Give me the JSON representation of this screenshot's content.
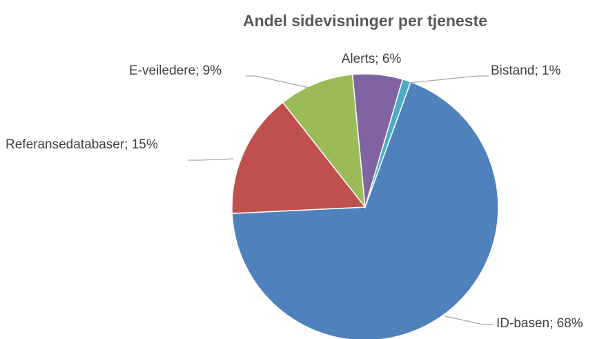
{
  "chart_data": {
    "type": "pie",
    "title": "Andel sidevisninger per tjeneste",
    "values": [
      68,
      15,
      9,
      6,
      1
    ],
    "value_labels": [
      "ID-basen; 68%",
      "Referansedatabaser; 15%",
      "E-veiledere; 9%",
      "Alerts; 6%",
      "Bistand; 1%"
    ],
    "colors": [
      "#4f81bd",
      "#c0504d",
      "#9bbb59",
      "#8064a2",
      "#4bacc6"
    ]
  }
}
